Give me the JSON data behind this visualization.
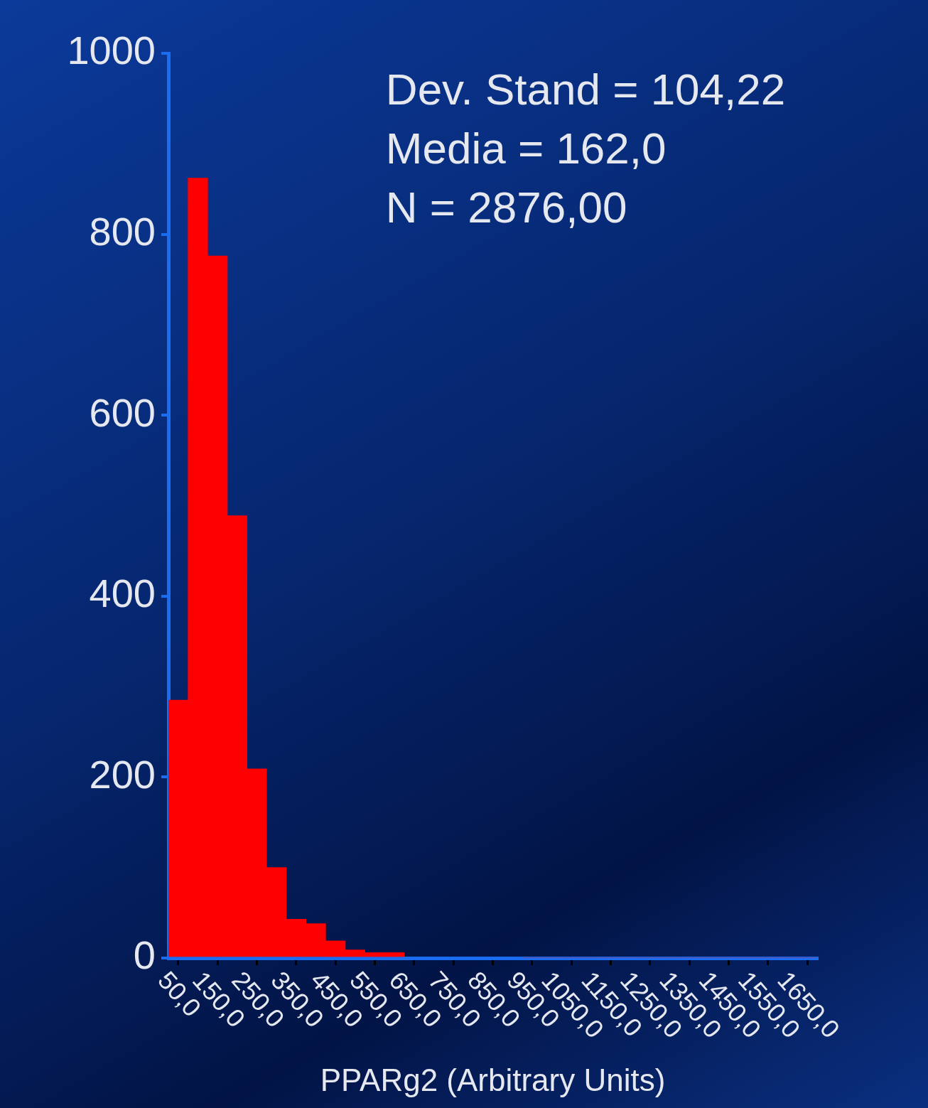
{
  "chart_data": {
    "type": "histogram",
    "xlabel": "PPARg2 (Arbitrary Units)",
    "annotations": [
      "Dev. Stand = 104,22",
      "Media = 162,0",
      "N = 2876,00"
    ],
    "bins": [
      25,
      75,
      125,
      175,
      225,
      275,
      325,
      375,
      425,
      475,
      525,
      575,
      625,
      675,
      725,
      775,
      825,
      875,
      925,
      975,
      1025,
      1075,
      1125,
      1175,
      1225,
      1275,
      1325,
      1375,
      1425,
      1475,
      1525,
      1575,
      1625,
      1675
    ],
    "values": [
      285,
      862,
      776,
      489,
      209,
      100,
      43,
      38,
      19,
      9,
      6,
      6,
      null,
      null,
      null,
      null,
      null,
      null,
      0,
      0,
      0,
      0,
      0,
      0,
      0,
      0,
      0,
      0,
      0,
      0,
      0,
      0,
      0
    ],
    "color": "#ff0000",
    "xlim": [
      25,
      1675
    ],
    "xticks": [
      {
        "value": 50,
        "label": "50,0"
      },
      {
        "value": 150,
        "label": "150,0"
      },
      {
        "value": 250,
        "label": "250,0"
      },
      {
        "value": 350,
        "label": "350,0"
      },
      {
        "value": 450,
        "label": "450,0"
      },
      {
        "value": 550,
        "label": "550,0"
      },
      {
        "value": 650,
        "label": "650,0"
      },
      {
        "value": 750,
        "label": "750,0"
      },
      {
        "value": 850,
        "label": "850,0"
      },
      {
        "value": 950,
        "label": "950,0"
      },
      {
        "value": 1050,
        "label": "1050,0"
      },
      {
        "value": 1150,
        "label": "1150,0"
      },
      {
        "value": 1250,
        "label": "1250,0"
      },
      {
        "value": 1350,
        "label": "1350,0"
      },
      {
        "value": 1450,
        "label": "1450,0"
      },
      {
        "value": 1550,
        "label": "1550,0"
      },
      {
        "value": 1650,
        "label": "1650,0"
      }
    ],
    "ylim": [
      0,
      1000
    ],
    "yticks": [
      0,
      200,
      400,
      600,
      800,
      1000
    ],
    "grid": false,
    "legend": false
  }
}
